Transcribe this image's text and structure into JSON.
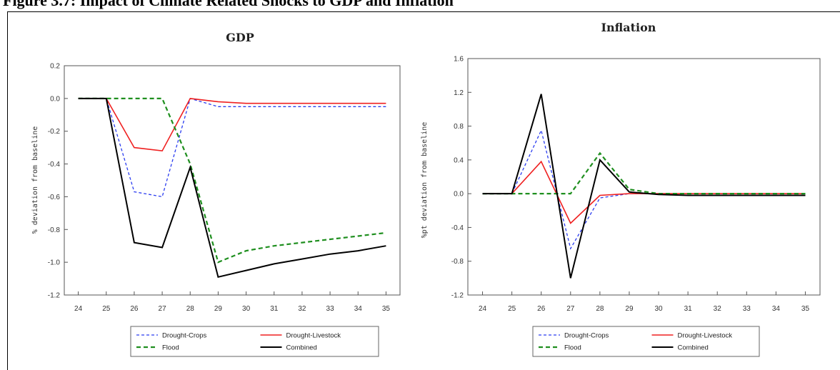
{
  "figure": {
    "title": "Figure 3.7: Impact of Climate Related Shocks to GDP and Inflation"
  },
  "colors": {
    "drought_crops": "#2b3df0",
    "drought_livestock": "#ef2020",
    "flood": "#1f8f1f",
    "combined": "#000000"
  },
  "chart_data": [
    {
      "type": "line",
      "title": "GDP",
      "xlabel": "",
      "ylabel": "% deviation from baseline",
      "categories": [
        "24",
        "25",
        "26",
        "27",
        "28",
        "29",
        "30",
        "31",
        "32",
        "33",
        "34",
        "35"
      ],
      "ylim": [
        -1.2,
        0.2
      ],
      "yticks": [
        "0.2",
        "0.0",
        "-0.2",
        "-0.4",
        "-0.6",
        "-0.8",
        "-1.0",
        "-1.2"
      ],
      "yticks_values": [
        0.2,
        0.0,
        -0.2,
        -0.4,
        -0.6,
        -0.8,
        -1.0,
        -1.2
      ],
      "grid": false,
      "legend_position": "bottom",
      "series": [
        {
          "name": "Drought-Crops",
          "key": "drought_crops",
          "values": [
            0.0,
            0.0,
            -0.57,
            -0.6,
            0.0,
            -0.05,
            -0.05,
            -0.05,
            -0.05,
            -0.05,
            -0.05,
            -0.05
          ]
        },
        {
          "name": "Drought-Livestock",
          "key": "drought_livestock",
          "values": [
            0.0,
            0.0,
            -0.3,
            -0.32,
            0.0,
            -0.02,
            -0.03,
            -0.03,
            -0.03,
            -0.03,
            -0.03,
            -0.03
          ]
        },
        {
          "name": "Flood",
          "key": "flood",
          "values": [
            0.0,
            0.0,
            0.0,
            0.0,
            -0.4,
            -1.0,
            -0.93,
            -0.9,
            -0.88,
            -0.86,
            -0.84,
            -0.82
          ]
        },
        {
          "name": "Combined",
          "key": "combined",
          "values": [
            0.0,
            0.0,
            -0.88,
            -0.91,
            -0.42,
            -1.09,
            -1.05,
            -1.01,
            -0.98,
            -0.95,
            -0.93,
            -0.9
          ]
        }
      ]
    },
    {
      "type": "line",
      "title": "Inflation",
      "xlabel": "",
      "ylabel": "%pt deviation from baseline",
      "categories": [
        "24",
        "25",
        "26",
        "27",
        "28",
        "29",
        "30",
        "31",
        "32",
        "33",
        "34",
        "35"
      ],
      "ylim": [
        -1.2,
        1.6
      ],
      "yticks": [
        "1.6",
        "1.2",
        "0.8",
        "0.4",
        "0.0",
        "-0.4",
        "-0.8",
        "-1.2"
      ],
      "yticks_values": [
        1.6,
        1.2,
        0.8,
        0.4,
        0.0,
        -0.4,
        -0.8,
        -1.2
      ],
      "grid": false,
      "legend_position": "bottom",
      "series": [
        {
          "name": "Drought-Crops",
          "key": "drought_crops",
          "values": [
            0.0,
            0.0,
            0.75,
            -0.65,
            -0.05,
            0.0,
            0.0,
            0.0,
            0.0,
            0.0,
            0.0,
            0.0
          ]
        },
        {
          "name": "Drought-Livestock",
          "key": "drought_livestock",
          "values": [
            0.0,
            0.0,
            0.38,
            -0.35,
            -0.02,
            0.0,
            0.0,
            0.0,
            0.0,
            0.0,
            0.0,
            0.0
          ]
        },
        {
          "name": "Flood",
          "key": "flood",
          "values": [
            0.0,
            0.0,
            0.0,
            0.0,
            0.48,
            0.05,
            0.0,
            0.0,
            0.0,
            0.0,
            0.0,
            0.0
          ]
        },
        {
          "name": "Combined",
          "key": "combined",
          "values": [
            0.0,
            0.0,
            1.18,
            -1.0,
            0.4,
            0.02,
            -0.01,
            -0.02,
            -0.02,
            -0.02,
            -0.02,
            -0.02
          ]
        }
      ]
    }
  ]
}
